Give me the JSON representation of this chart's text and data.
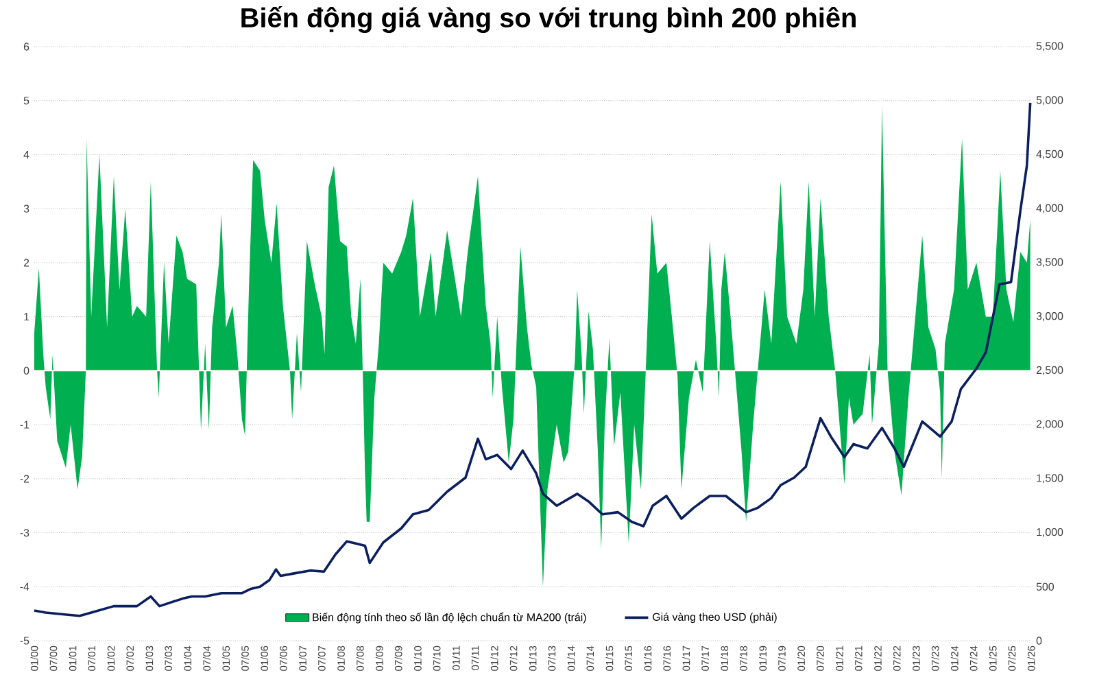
{
  "chart_data": {
    "type": "area",
    "title": "Biến động giá vàng so với trung bình 200 phiên",
    "xlim": [
      "2000-01-01",
      "2026-01-01"
    ],
    "xticks": [
      {
        "value": "2000-01-01",
        "label": "01/00"
      },
      {
        "value": "2000-07-01",
        "label": "07/00"
      },
      {
        "value": "2001-01-01",
        "label": "01/01"
      },
      {
        "value": "2001-07-01",
        "label": "07/01"
      },
      {
        "value": "2002-01-01",
        "label": "01/02"
      },
      {
        "value": "2002-07-01",
        "label": "07/02"
      },
      {
        "value": "2003-01-01",
        "label": "01/03"
      },
      {
        "value": "2003-07-01",
        "label": "07/03"
      },
      {
        "value": "2004-01-01",
        "label": "01/04"
      },
      {
        "value": "2004-07-01",
        "label": "07/04"
      },
      {
        "value": "2005-01-01",
        "label": "01/05"
      },
      {
        "value": "2005-07-01",
        "label": "07/05"
      },
      {
        "value": "2006-01-01",
        "label": "01/06"
      },
      {
        "value": "2006-07-01",
        "label": "07/06"
      },
      {
        "value": "2007-01-01",
        "label": "01/07"
      },
      {
        "value": "2007-07-01",
        "label": "07/07"
      },
      {
        "value": "2008-01-01",
        "label": "01/08"
      },
      {
        "value": "2008-07-01",
        "label": "07/08"
      },
      {
        "value": "2009-01-01",
        "label": "01/09"
      },
      {
        "value": "2009-07-01",
        "label": "07/09"
      },
      {
        "value": "2010-01-01",
        "label": "01/10"
      },
      {
        "value": "2010-07-01",
        "label": "07/10"
      },
      {
        "value": "2011-01-01",
        "label": "01/11"
      },
      {
        "value": "2011-07-01",
        "label": "07/11"
      },
      {
        "value": "2012-01-01",
        "label": "01/12"
      },
      {
        "value": "2012-07-01",
        "label": "07/12"
      },
      {
        "value": "2013-01-01",
        "label": "01/13"
      },
      {
        "value": "2013-07-01",
        "label": "07/13"
      },
      {
        "value": "2014-01-01",
        "label": "01/14"
      },
      {
        "value": "2014-07-01",
        "label": "07/14"
      },
      {
        "value": "2015-01-01",
        "label": "01/15"
      },
      {
        "value": "2015-07-01",
        "label": "07/15"
      },
      {
        "value": "2016-01-01",
        "label": "01/16"
      },
      {
        "value": "2016-07-01",
        "label": "07/16"
      },
      {
        "value": "2017-01-01",
        "label": "01/17"
      },
      {
        "value": "2017-07-01",
        "label": "07/17"
      },
      {
        "value": "2018-01-01",
        "label": "01/18"
      },
      {
        "value": "2018-07-01",
        "label": "07/18"
      },
      {
        "value": "2019-01-01",
        "label": "01/19"
      },
      {
        "value": "2019-07-01",
        "label": "07/19"
      },
      {
        "value": "2020-01-01",
        "label": "01/20"
      },
      {
        "value": "2020-07-01",
        "label": "07/20"
      },
      {
        "value": "2021-01-01",
        "label": "01/21"
      },
      {
        "value": "2021-07-01",
        "label": "07/21"
      },
      {
        "value": "2022-01-01",
        "label": "01/22"
      },
      {
        "value": "2022-07-01",
        "label": "07/22"
      },
      {
        "value": "2023-01-01",
        "label": "01/23"
      },
      {
        "value": "2023-07-01",
        "label": "07/23"
      },
      {
        "value": "2024-01-01",
        "label": "01/24"
      },
      {
        "value": "2024-07-01",
        "label": "07/24"
      },
      {
        "value": "2025-01-01",
        "label": "01/25"
      },
      {
        "value": "2025-07-01",
        "label": "07/25"
      },
      {
        "value": "2026-01-01",
        "label": "01/26"
      }
    ],
    "ylim": [
      -5,
      6
    ],
    "yticks": [
      -5,
      -4,
      -3,
      -2,
      -1,
      0,
      1,
      2,
      3,
      4,
      5,
      6
    ],
    "y2lim": [
      0,
      5500
    ],
    "y2ticks": [
      0,
      {
        "value": 500,
        "label": "500"
      },
      {
        "value": 1000,
        "label": "1,000"
      },
      {
        "value": 1500,
        "label": "1,500"
      },
      {
        "value": 2000,
        "label": "2,000"
      },
      {
        "value": 2500,
        "label": "2,500"
      },
      {
        "value": 3000,
        "label": "3,000"
      },
      {
        "value": 3500,
        "label": "3,500"
      },
      {
        "value": 4000,
        "label": "4,000"
      },
      {
        "value": 4500,
        "label": "4,500"
      },
      {
        "value": 5000,
        "label": "5,000"
      },
      {
        "value": 5500,
        "label": "5,500"
      }
    ],
    "grid": "y",
    "legend": "bottom",
    "series": [
      {
        "name": "Biến động tính theo số lần độ lệch chuẩn từ MA200 (trái)",
        "color": "#00b050",
        "x": [
          "2000-01-01",
          "2000-02-14",
          "2000-03-27",
          "2000-04-19",
          "2000-06-02",
          "2000-06-23",
          "2000-08-07",
          "2000-10-28",
          "2000-12-13",
          "2001-02-17",
          "2001-04-01",
          "2001-05-07",
          "2001-05-14",
          "2001-06-27",
          "2001-09-13",
          "2001-11-25",
          "2002-01-28",
          "2002-03-23",
          "2002-05-17",
          "2002-07-22",
          "2002-09-05",
          "2002-12-02",
          "2003-01-15",
          "2003-03-16",
          "2003-04-01",
          "2003-05-21",
          "2003-07-04",
          "2003-09-16",
          "2003-11-14",
          "2003-12-27",
          "2004-03-23",
          "2004-05-07",
          "2004-06-16",
          "2004-07-22",
          "2004-08-21",
          "2004-10-26",
          "2004-11-17",
          "2005-01-01",
          "2005-03-05",
          "2005-04-19",
          "2005-06-02",
          "2005-07-01",
          "2005-08-07",
          "2005-09-16",
          "2005-11-21",
          "2006-01-04",
          "2006-03-09",
          "2006-04-28",
          "2006-06-27",
          "2006-09-02",
          "2006-09-23",
          "2006-11-07",
          "2006-12-16",
          "2007-02-10",
          "2007-04-26",
          "2007-07-01",
          "2007-07-28",
          "2007-09-05",
          "2007-10-26",
          "2007-12-23",
          "2008-02-25",
          "2008-04-08",
          "2008-05-21",
          "2008-07-04",
          "2008-07-26",
          "2008-08-17",
          "2008-09-02",
          "2008-10-01",
          "2008-11-14",
          "2008-12-27",
          "2009-02-07",
          "2009-05-03",
          "2009-07-28",
          "2009-09-13",
          "2009-11-17",
          "2010-01-22",
          "2010-05-07",
          "2010-06-20",
          "2010-10-08",
          "2010-12-13",
          "2011-02-17",
          "2011-04-22",
          "2011-07-28",
          "2011-10-11",
          "2011-11-25",
          "2011-12-16",
          "2012-01-28",
          "2012-03-13",
          "2012-05-17",
          "2012-07-01",
          "2012-09-05",
          "2012-11-07",
          "2012-12-20",
          "2013-02-03",
          "2013-04-08",
          "2013-05-21",
          "2013-08-17",
          "2013-10-22",
          "2013-12-05",
          "2014-02-07",
          "2014-02-28",
          "2014-04-11",
          "2014-05-03",
          "2014-06-16",
          "2014-07-28",
          "2014-09-13",
          "2014-10-15",
          "2014-11-17",
          "2015-01-01",
          "2015-02-14",
          "2015-04-15",
          "2015-07-04",
          "2015-08-25",
          "2015-10-28",
          "2015-12-13",
          "2016-02-07",
          "2016-04-01",
          "2016-06-27",
          "2016-08-28",
          "2016-10-11",
          "2016-11-17",
          "2017-01-28",
          "2017-04-04",
          "2017-06-09",
          "2017-08-14",
          "2017-10-15",
          "2017-11-10",
          "2017-12-02",
          "2018-01-04",
          "2018-02-28",
          "2018-04-11",
          "2018-06-13",
          "2018-07-26",
          "2018-10-01",
          "2018-11-14",
          "2019-01-19",
          "2019-03-23",
          "2019-06-20",
          "2019-08-21",
          "2019-11-17",
          "2020-01-22",
          "2020-03-13",
          "2020-05-10",
          "2020-07-04",
          "2020-09-20",
          "2020-11-21",
          "2021-02-17",
          "2021-04-01",
          "2021-05-14",
          "2021-08-10",
          "2021-10-15",
          "2021-11-07",
          "2022-01-11",
          "2022-02-10",
          "2022-04-04",
          "2022-06-09",
          "2022-08-14",
          "2022-10-19",
          "2022-12-02",
          "2023-02-28",
          "2023-04-28",
          "2023-07-04",
          "2023-08-17",
          "2023-09-02",
          "2023-10-01",
          "2023-12-27",
          "2024-03-13",
          "2024-05-07",
          "2024-07-28",
          "2024-10-26",
          "2025-01-01",
          "2025-03-13",
          "2025-05-10",
          "2025-07-15",
          "2025-09-20",
          "2025-11-21",
          "2025-12-23"
        ],
        "values": [
          0.7,
          1.9,
          0.3,
          -0.3,
          -0.9,
          0.3,
          -1.3,
          -1.8,
          -1.0,
          -2.2,
          -1.6,
          0,
          4.3,
          1.0,
          4.0,
          0.8,
          3.6,
          1.5,
          3.0,
          1.0,
          1.2,
          1.0,
          3.5,
          0,
          -0.5,
          2.0,
          0.5,
          2.5,
          2.2,
          1.7,
          1.6,
          -1.1,
          0.5,
          -1.1,
          0.8,
          2.0,
          2.9,
          0.8,
          1.2,
          0.3,
          -0.9,
          -1.2,
          1.5,
          3.9,
          3.7,
          2.8,
          2.0,
          3.1,
          1.2,
          0,
          -0.9,
          0.7,
          -0.4,
          2.4,
          1.6,
          1.0,
          0.3,
          3.4,
          3.8,
          2.4,
          2.3,
          1.0,
          0.5,
          1.7,
          0,
          -1.9,
          -2.8,
          -2.8,
          -0.5,
          0.5,
          2.0,
          1.8,
          2.2,
          2.5,
          3.2,
          1.0,
          2.2,
          1.0,
          2.6,
          1.8,
          1.0,
          2.2,
          3.6,
          1.2,
          0.5,
          -0.5,
          1.0,
          -0.3,
          -1.7,
          -0.9,
          2.3,
          0.8,
          0.1,
          -0.3,
          -4.0,
          -2.2,
          -1.0,
          -1.7,
          -1.5,
          0.2,
          1.5,
          0.3,
          -0.8,
          1.1,
          0.4,
          -1.5,
          -3.3,
          -1.0,
          0.6,
          -1.4,
          -0.4,
          -3.2,
          -1.0,
          -2.2,
          0,
          2.9,
          1.8,
          2.0,
          0.8,
          -0.1,
          -2.2,
          -0.5,
          0.2,
          -0.4,
          2.4,
          0.5,
          -0.5,
          1.5,
          2.2,
          1.0,
          0,
          -1.5,
          -2.8,
          -1.0,
          0,
          1.5,
          0.5,
          3.5,
          1.0,
          0.5,
          1.5,
          3.5,
          1.0,
          3.2,
          1.0,
          0,
          -2.1,
          -0.5,
          -1.0,
          -0.8,
          0.3,
          -1.0,
          0.5,
          4.9,
          0,
          -1.5,
          -2.3,
          -0.5,
          0.5,
          2.5,
          0.8,
          0.4,
          -0.4,
          -2.0,
          0.5,
          1.5,
          4.3,
          1.5,
          2.0,
          1.0,
          1.0,
          3.7,
          1.5,
          0.9,
          2.2,
          2.0,
          2.8
        ]
      },
      {
        "name": "Giá vàng theo USD (phải)",
        "type": "line",
        "axis": "y2",
        "color": "#0b1f5e",
        "line_style": "solid",
        "x": [
          "2000-01-01",
          "2000-04-19",
          "2000-11-21",
          "2001-03-09",
          "2001-06-27",
          "2002-01-28",
          "2002-09-05",
          "2003-01-15",
          "2003-04-08",
          "2003-11-14",
          "2004-02-10",
          "2004-06-16",
          "2004-11-17",
          "2005-06-02",
          "2005-08-25",
          "2005-11-21",
          "2006-02-17",
          "2006-04-22",
          "2006-06-05",
          "2006-09-23",
          "2007-03-13",
          "2007-07-22",
          "2007-11-10",
          "2008-02-25",
          "2008-05-21",
          "2008-08-17",
          "2008-10-01",
          "2009-02-07",
          "2009-07-28",
          "2009-11-17",
          "2010-04-15",
          "2010-10-08",
          "2011-04-01",
          "2011-07-28",
          "2011-10-11",
          "2012-01-28",
          "2012-06-09",
          "2012-09-27",
          "2013-02-03",
          "2013-04-08",
          "2013-08-17",
          "2014-02-28",
          "2014-06-16",
          "2014-10-26",
          "2015-03-23",
          "2015-08-03",
          "2015-11-21",
          "2016-02-17",
          "2016-06-27",
          "2016-11-17",
          "2017-03-13",
          "2017-08-14",
          "2018-01-15",
          "2018-07-26",
          "2018-11-14",
          "2019-03-23",
          "2019-06-20",
          "2019-10-26",
          "2020-02-14",
          "2020-07-04",
          "2020-10-11",
          "2021-02-17",
          "2021-05-14",
          "2021-09-23",
          "2022-02-10",
          "2022-06-09",
          "2022-09-05",
          "2023-02-28",
          "2023-08-17",
          "2023-12-05",
          "2024-03-02",
          "2024-07-28",
          "2024-10-26",
          "2025-03-05",
          "2025-06-23",
          "2025-09-20",
          "2025-11-21",
          "2025-12-23"
        ],
        "values": [
          280,
          260,
          240,
          230,
          260,
          320,
          320,
          410,
          320,
          390,
          410,
          410,
          440,
          440,
          480,
          500,
          560,
          660,
          600,
          620,
          650,
          640,
          800,
          920,
          900,
          880,
          720,
          910,
          1040,
          1170,
          1210,
          1380,
          1510,
          1870,
          1680,
          1720,
          1590,
          1760,
          1550,
          1360,
          1250,
          1360,
          1290,
          1170,
          1190,
          1100,
          1060,
          1250,
          1340,
          1130,
          1230,
          1340,
          1340,
          1190,
          1230,
          1320,
          1440,
          1510,
          1610,
          2060,
          1890,
          1700,
          1820,
          1780,
          1970,
          1780,
          1610,
          2030,
          1890,
          2030,
          2330,
          2520,
          2670,
          3300,
          3320,
          3980,
          4400,
          4980
        ]
      }
    ]
  }
}
